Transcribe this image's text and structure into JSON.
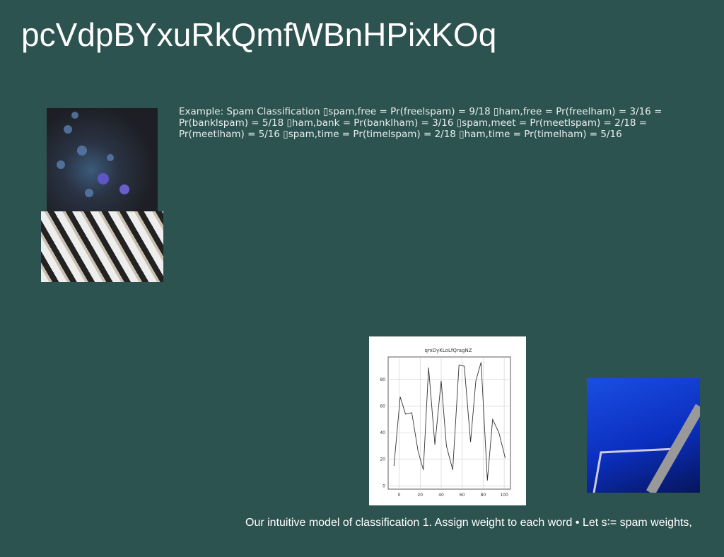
{
  "title": "pcVdpBYxuRkQmfWBnHPixKOq",
  "body": "Example: Spam Classification ▯spam,free = Pr(freelspam) = 9/18 ▯ham,free = Pr(freelham) = 3/16 = Pr(banklspam) = 5/18 ▯ham,bank = Pr(banklham) = 3/16 ▯spam,meet = Pr(meetlspam) = 2/18 = Pr(meetlham) = 5/16 ▯spam,time = Pr(timelspam) = 2/18 ▯ham,time = Pr(timelham) = 5/16",
  "caption": "Our intuitive model of classification 1. Assign weight to each word • Let s∶= spam weights,",
  "chart": {
    "type": "line",
    "title": "qrxDyKLoLfQragNZ",
    "color": "#333333",
    "x": [
      -5,
      1,
      6,
      12,
      18,
      23,
      28,
      34,
      40,
      45,
      51,
      57,
      62,
      68,
      73,
      78,
      84,
      89,
      95,
      101
    ],
    "values": [
      15,
      67,
      54,
      55,
      26,
      12,
      89,
      31,
      79,
      30,
      12,
      91,
      90,
      33,
      79,
      93,
      4,
      50,
      40,
      21
    ],
    "xlim": [
      -10.5,
      106
    ],
    "ylim": [
      -2.5,
      97
    ],
    "xticks": [
      0,
      20,
      40,
      60,
      80,
      100
    ],
    "yticks": [
      0,
      20,
      40,
      60,
      80
    ],
    "grid": true
  }
}
